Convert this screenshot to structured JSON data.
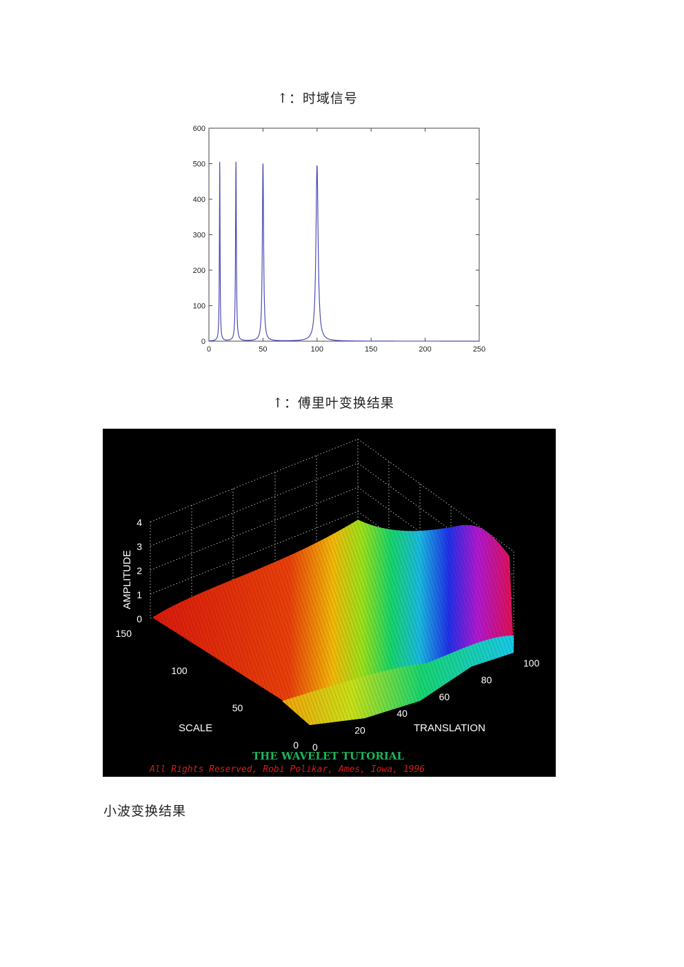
{
  "captions": {
    "time_domain": "↑：时域信号",
    "fourier": "↑：傅里叶变换结果",
    "wavelet": "小波变换结果"
  },
  "chart_data": [
    {
      "type": "line",
      "title": "",
      "xlabel": "",
      "ylabel": "",
      "xlim": [
        0,
        250
      ],
      "ylim": [
        0,
        600
      ],
      "x_ticks": [
        "0",
        "50",
        "100",
        "150",
        "200",
        "250"
      ],
      "y_ticks": [
        "0",
        "100",
        "200",
        "300",
        "400",
        "500",
        "600"
      ],
      "grid": false,
      "line_color": "#4a4ab8",
      "peaks": [
        {
          "x": 10,
          "y": 505
        },
        {
          "x": 25,
          "y": 505
        },
        {
          "x": 50,
          "y": 500
        },
        {
          "x": 100,
          "y": 495
        }
      ],
      "baseline": 0
    },
    {
      "type": "surface-3d",
      "zlabel": "AMPLITUDE",
      "ylabel": "SCALE",
      "xlabel": "TRANSLATION",
      "z_ticks": [
        "0",
        "1",
        "2",
        "3",
        "4"
      ],
      "scale_ticks": [
        "0",
        "50",
        "100",
        "150"
      ],
      "translation_ticks": [
        "0",
        "20",
        "40",
        "60",
        "80",
        "100"
      ],
      "zlim": [
        0,
        4
      ],
      "background": "#000000",
      "colormap": "red-orange-yellow-green-cyan-blue-magenta"
    }
  ],
  "watermark": {
    "title": "THE WAVELET TUTORIAL",
    "rights": "All Rights Reserved, Robi Polikar, Ames, Iowa, 1996"
  }
}
